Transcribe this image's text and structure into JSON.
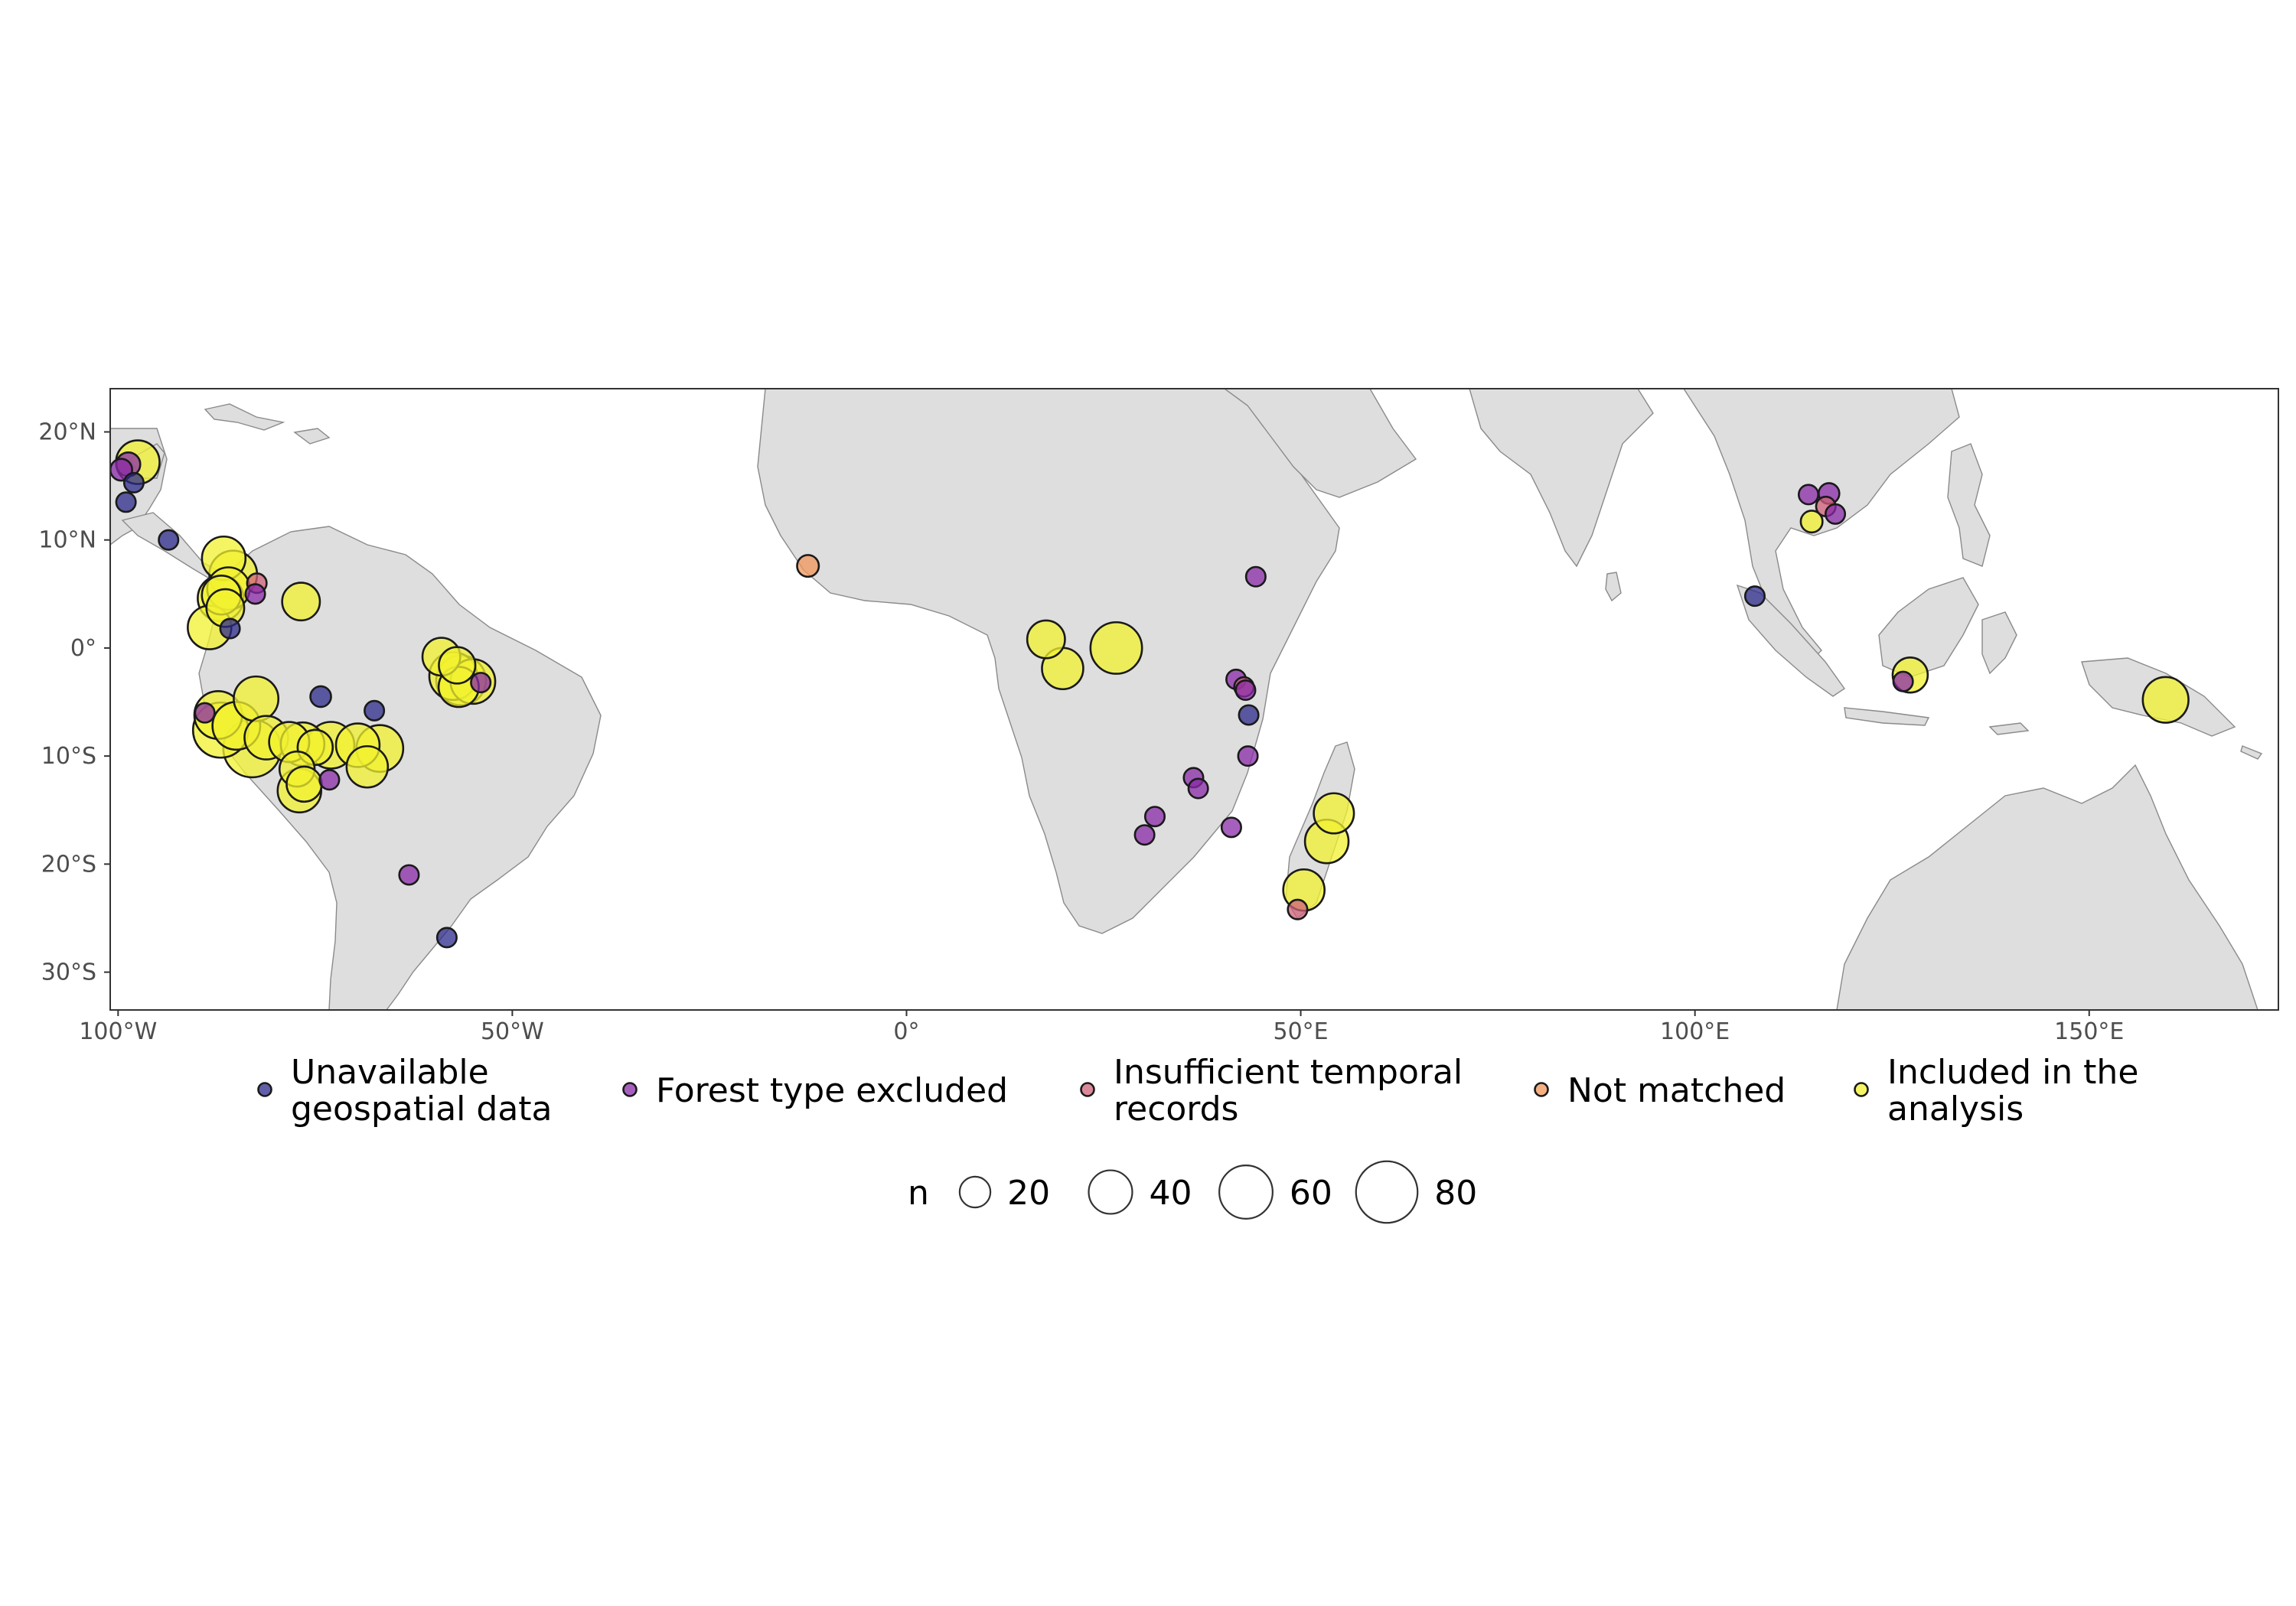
{
  "map": {
    "lon_range": [
      -101,
      174
    ],
    "lat_range": [
      -33.5,
      24
    ],
    "x_ticks": [
      {
        "lon": -100,
        "label": "100°W"
      },
      {
        "lon": -50,
        "label": "50°W"
      },
      {
        "lon": 0,
        "label": "0°"
      },
      {
        "lon": 50,
        "label": "50°E"
      },
      {
        "lon": 100,
        "label": "100°E"
      },
      {
        "lon": 150,
        "label": "150°E"
      }
    ],
    "y_ticks": [
      {
        "lat": 20,
        "label": "20°N"
      },
      {
        "lat": 10,
        "label": "10°N"
      },
      {
        "lat": 0,
        "label": "0°"
      },
      {
        "lat": -10,
        "label": "10°S"
      },
      {
        "lat": -20,
        "label": "20°S"
      },
      {
        "lat": -30,
        "label": "30°S"
      }
    ]
  },
  "categories": [
    {
      "key": "unavailable",
      "label_lines": [
        "Unavailable",
        "geospatial data"
      ],
      "color": "#2b2a8a"
    },
    {
      "key": "forest",
      "label_lines": [
        "Forest type excluded"
      ],
      "color": "#8a2aa8"
    },
    {
      "key": "insufficient",
      "label_lines": [
        "Insufficient temporal",
        " records"
      ],
      "color": "#d0607a"
    },
    {
      "key": "notmatched",
      "label_lines": [
        "Not matched"
      ],
      "color": "#f0955a"
    },
    {
      "key": "included",
      "label_lines": [
        "Included in the",
        "analysis"
      ],
      "color": "#f2f230"
    }
  ],
  "size_legend": {
    "title": "n",
    "values": [
      20,
      40,
      60,
      80
    ]
  },
  "points": [
    {
      "lon": -97.5,
      "lat": 17.2,
      "n": 40,
      "cat": "included"
    },
    {
      "lon": -98.7,
      "lat": 17.0,
      "n": 12,
      "cat": "forest"
    },
    {
      "lon": -99.6,
      "lat": 16.5,
      "n": 10,
      "cat": "forest"
    },
    {
      "lon": -98.0,
      "lat": 15.3,
      "n": 8,
      "cat": "unavailable"
    },
    {
      "lon": -99.0,
      "lat": 13.5,
      "n": 8,
      "cat": "unavailable"
    },
    {
      "lon": -93.6,
      "lat": 10.0,
      "n": 8,
      "cat": "unavailable"
    },
    {
      "lon": -86.6,
      "lat": 8.3,
      "n": 40,
      "cat": "included"
    },
    {
      "lon": -85.4,
      "lat": 6.8,
      "n": 48,
      "cat": "included"
    },
    {
      "lon": -86.0,
      "lat": 5.5,
      "n": 38,
      "cat": "included"
    },
    {
      "lon": -87.0,
      "lat": 4.6,
      "n": 44,
      "cat": "included"
    },
    {
      "lon": -86.4,
      "lat": 3.7,
      "n": 30,
      "cat": "included"
    },
    {
      "lon": -86.9,
      "lat": 4.9,
      "n": 32,
      "cat": "included"
    },
    {
      "lon": -88.4,
      "lat": 1.9,
      "n": 40,
      "cat": "included"
    },
    {
      "lon": -85.8,
      "lat": 1.8,
      "n": 8,
      "cat": "unavailable"
    },
    {
      "lon": -82.4,
      "lat": 6.0,
      "n": 8,
      "cat": "insufficient"
    },
    {
      "lon": -82.6,
      "lat": 5.0,
      "n": 8,
      "cat": "forest"
    },
    {
      "lon": -76.8,
      "lat": 4.3,
      "n": 30,
      "cat": "included"
    },
    {
      "lon": -74.3,
      "lat": -4.5,
      "n": 9,
      "cat": "unavailable"
    },
    {
      "lon": -67.5,
      "lat": -5.8,
      "n": 8,
      "cat": "unavailable"
    },
    {
      "lon": -89.0,
      "lat": -6.0,
      "n": 8,
      "cat": "forest"
    },
    {
      "lon": -87.3,
      "lat": -6.2,
      "n": 48,
      "cat": "included"
    },
    {
      "lon": -87.0,
      "lat": -7.6,
      "n": 64,
      "cat": "included"
    },
    {
      "lon": -82.5,
      "lat": -4.7,
      "n": 42,
      "cat": "included"
    },
    {
      "lon": -85.0,
      "lat": -7.2,
      "n": 48,
      "cat": "included"
    },
    {
      "lon": -81.2,
      "lat": -8.3,
      "n": 40,
      "cat": "included"
    },
    {
      "lon": -83.0,
      "lat": -9.3,
      "n": 70,
      "cat": "included"
    },
    {
      "lon": -78.3,
      "lat": -8.7,
      "n": 34,
      "cat": "included"
    },
    {
      "lon": -76.6,
      "lat": -8.9,
      "n": 40,
      "cat": "included"
    },
    {
      "lon": -75.0,
      "lat": -9.2,
      "n": 26,
      "cat": "included"
    },
    {
      "lon": -73.0,
      "lat": -9.0,
      "n": 46,
      "cat": "included"
    },
    {
      "lon": -69.6,
      "lat": -9.0,
      "n": 40,
      "cat": "included"
    },
    {
      "lon": -66.8,
      "lat": -9.3,
      "n": 46,
      "cat": "included"
    },
    {
      "lon": -68.4,
      "lat": -11.0,
      "n": 36,
      "cat": "included"
    },
    {
      "lon": -77.3,
      "lat": -11.2,
      "n": 26,
      "cat": "included"
    },
    {
      "lon": -76.4,
      "lat": -12.6,
      "n": 26,
      "cat": "included"
    },
    {
      "lon": -77.0,
      "lat": -13.2,
      "n": 40,
      "cat": "included"
    },
    {
      "lon": -73.2,
      "lat": -12.2,
      "n": 8,
      "cat": "forest"
    },
    {
      "lon": -63.1,
      "lat": -21.0,
      "n": 8,
      "cat": "forest"
    },
    {
      "lon": -58.3,
      "lat": -26.8,
      "n": 8,
      "cat": "unavailable"
    },
    {
      "lon": -59.0,
      "lat": -0.8,
      "n": 30,
      "cat": "included"
    },
    {
      "lon": -57.0,
      "lat": -1.6,
      "n": 28,
      "cat": "included"
    },
    {
      "lon": -57.5,
      "lat": -2.6,
      "n": 48,
      "cat": "included"
    },
    {
      "lon": -56.5,
      "lat": -3.0,
      "n": 52,
      "cat": "included"
    },
    {
      "lon": -55.0,
      "lat": -3.1,
      "n": 42,
      "cat": "included"
    },
    {
      "lon": -56.8,
      "lat": -3.6,
      "n": 34,
      "cat": "included"
    },
    {
      "lon": -54.0,
      "lat": -3.2,
      "n": 8,
      "cat": "forest"
    },
    {
      "lon": -12.5,
      "lat": 7.6,
      "n": 10,
      "cat": "notmatched"
    },
    {
      "lon": 17.7,
      "lat": 0.8,
      "n": 30,
      "cat": "included"
    },
    {
      "lon": 19.8,
      "lat": -1.9,
      "n": 36,
      "cat": "included"
    },
    {
      "lon": 26.6,
      "lat": 0.0,
      "n": 56,
      "cat": "included"
    },
    {
      "lon": 44.3,
      "lat": 6.6,
      "n": 8,
      "cat": "forest"
    },
    {
      "lon": 41.8,
      "lat": -2.9,
      "n": 8,
      "cat": "forest"
    },
    {
      "lon": 42.8,
      "lat": -3.6,
      "n": 8,
      "cat": "insufficient"
    },
    {
      "lon": 43.0,
      "lat": -3.9,
      "n": 8,
      "cat": "forest"
    },
    {
      "lon": 43.4,
      "lat": -6.2,
      "n": 8,
      "cat": "unavailable"
    },
    {
      "lon": 43.3,
      "lat": -10.0,
      "n": 8,
      "cat": "forest"
    },
    {
      "lon": 36.4,
      "lat": -12.0,
      "n": 8,
      "cat": "forest"
    },
    {
      "lon": 37.0,
      "lat": -13.0,
      "n": 8,
      "cat": "forest"
    },
    {
      "lon": 31.5,
      "lat": -15.6,
      "n": 8,
      "cat": "forest"
    },
    {
      "lon": 30.2,
      "lat": -17.3,
      "n": 8,
      "cat": "forest"
    },
    {
      "lon": 41.2,
      "lat": -16.6,
      "n": 8,
      "cat": "forest"
    },
    {
      "lon": 54.2,
      "lat": -15.3,
      "n": 34,
      "cat": "included"
    },
    {
      "lon": 53.3,
      "lat": -17.9,
      "n": 40,
      "cat": "included"
    },
    {
      "lon": 50.4,
      "lat": -22.4,
      "n": 36,
      "cat": "included"
    },
    {
      "lon": 49.6,
      "lat": -24.2,
      "n": 8,
      "cat": "insufficient"
    },
    {
      "lon": 107.6,
      "lat": 4.8,
      "n": 8,
      "cat": "unavailable"
    },
    {
      "lon": 114.4,
      "lat": 14.2,
      "n": 8,
      "cat": "forest"
    },
    {
      "lon": 117.0,
      "lat": 14.3,
      "n": 9,
      "cat": "forest"
    },
    {
      "lon": 116.6,
      "lat": 13.1,
      "n": 8,
      "cat": "insufficient"
    },
    {
      "lon": 117.8,
      "lat": 12.4,
      "n": 8,
      "cat": "forest"
    },
    {
      "lon": 114.8,
      "lat": 11.7,
      "n": 10,
      "cat": "included"
    },
    {
      "lon": 127.3,
      "lat": -2.5,
      "n": 26,
      "cat": "included"
    },
    {
      "lon": 126.4,
      "lat": -3.1,
      "n": 8,
      "cat": "forest"
    },
    {
      "lon": 159.7,
      "lat": -4.8,
      "n": 44,
      "cat": "included"
    }
  ]
}
